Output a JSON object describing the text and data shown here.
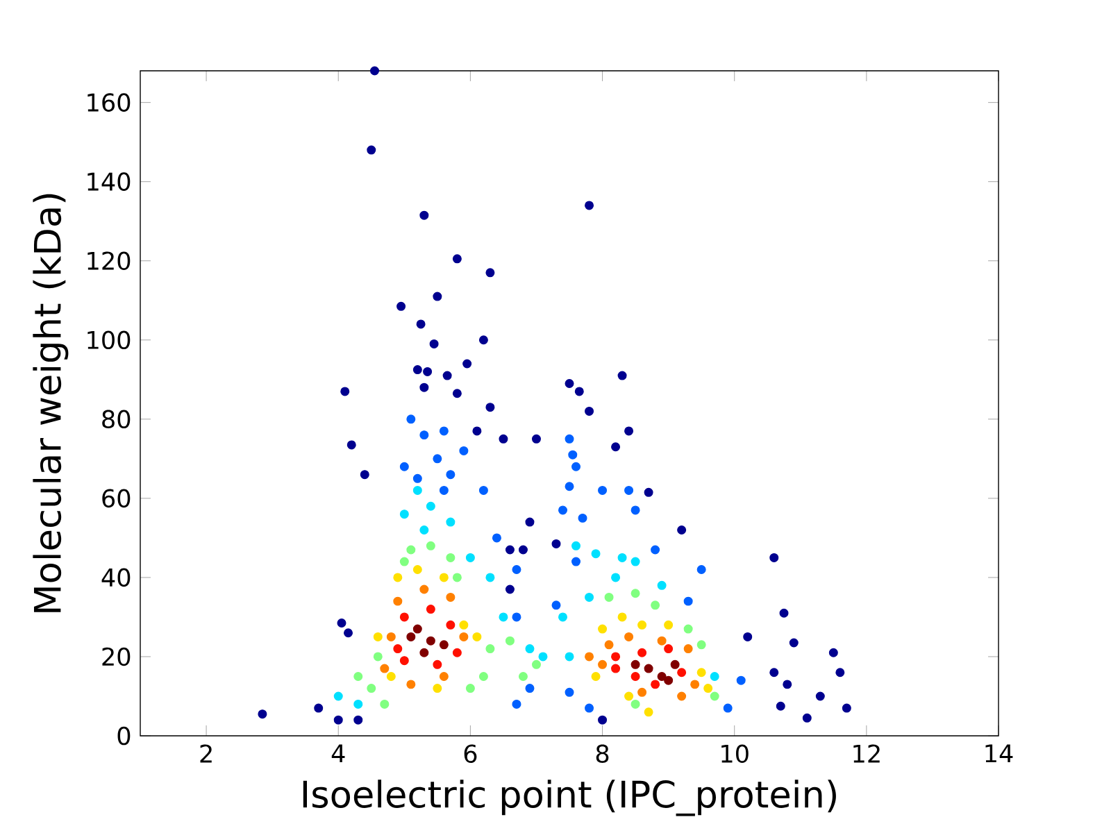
{
  "chart_data": {
    "type": "scatter",
    "xlabel": "Isoelectric point (IPC_protein)",
    "ylabel": "Molecular weight (kDa)",
    "xlim": [
      1,
      14
    ],
    "ylim": [
      0,
      168
    ],
    "xticks": [
      2,
      4,
      6,
      8,
      10,
      12,
      14
    ],
    "yticks": [
      0,
      20,
      40,
      60,
      80,
      100,
      120,
      140,
      160
    ],
    "marker": "circle",
    "grid": false,
    "x": [
      2.85,
      4.55,
      4.5,
      5.3,
      7.8,
      5.8,
      6.3,
      5.5,
      4.95,
      5.25,
      6.2,
      5.45,
      5.2,
      5.35,
      5.65,
      5.95,
      8.3,
      4.1,
      7.5,
      7.65,
      5.8,
      5.3,
      6.3,
      7.8,
      8.4,
      4.2,
      4.4,
      6.5,
      7.0,
      8.2,
      8.7,
      9.2,
      10.6,
      10.2,
      10.75,
      10.9,
      11.5,
      11.6,
      11.7,
      11.1,
      11.3,
      10.7,
      10.8,
      10.6,
      3.7,
      4.0,
      4.3,
      4.05,
      4.15,
      8.0,
      6.9,
      6.8,
      7.3,
      6.6,
      6.1,
      6.6,
      5.1,
      5.3,
      5.6,
      5.5,
      5.2,
      5.6,
      5.7,
      5.9,
      6.2,
      6.4,
      6.7,
      7.5,
      7.55,
      7.5,
      7.6,
      7.7,
      8.0,
      8.4,
      8.5,
      7.4,
      7.6,
      8.8,
      9.5,
      9.3,
      6.7,
      7.3,
      7.5,
      7.8,
      9.9,
      10.1,
      6.7,
      6.9,
      5.0,
      5.2,
      5.4,
      5.7,
      5.0,
      5.3,
      6.0,
      6.3,
      7.6,
      7.9,
      8.3,
      8.5,
      8.2,
      7.4,
      7.8,
      8.9,
      6.5,
      4.0,
      4.3,
      7.1,
      7.5,
      9.7,
      6.9,
      5.1,
      5.4,
      5.7,
      5.8,
      5.0,
      4.5,
      4.3,
      4.7,
      6.3,
      6.6,
      6.8,
      7.0,
      8.1,
      8.5,
      8.8,
      9.3,
      9.5,
      9.7,
      8.5,
      6.0,
      6.2,
      4.6,
      4.9,
      5.2,
      5.6,
      4.6,
      4.8,
      5.9,
      6.1,
      8.0,
      8.3,
      8.6,
      9.0,
      9.5,
      9.6,
      8.4,
      8.7,
      5.5,
      7.9,
      4.9,
      5.3,
      5.7,
      5.9,
      4.8,
      4.7,
      5.1,
      5.6,
      8.1,
      8.4,
      8.9,
      9.3,
      9.4,
      8.0,
      8.6,
      9.2,
      7.8,
      5.0,
      5.4,
      5.7,
      4.9,
      5.0,
      5.5,
      5.8,
      8.2,
      8.6,
      9.0,
      9.2,
      8.5,
      8.8,
      8.2,
      5.2,
      5.4,
      5.3,
      5.6,
      5.1,
      8.7,
      8.9,
      9.1,
      8.5,
      9.0
    ],
    "values": [
      5.5,
      168,
      148,
      131.5,
      134,
      120.5,
      117,
      111,
      108.5,
      104,
      100,
      99,
      92.5,
      92,
      91,
      94,
      91,
      87,
      89,
      87,
      86.5,
      88,
      83,
      82,
      77,
      73.5,
      66,
      75,
      75,
      73,
      61.5,
      52,
      45,
      25,
      31,
      23.5,
      21,
      16,
      7,
      4.5,
      10,
      7.5,
      13,
      16,
      7,
      4,
      4,
      28.5,
      26,
      4,
      54,
      47,
      48.5,
      47,
      77,
      37,
      80,
      76,
      77,
      70,
      65,
      62,
      66,
      72,
      62,
      50,
      42,
      75,
      71,
      63,
      68,
      55,
      62,
      62,
      57,
      57,
      44,
      47,
      42,
      34,
      30,
      33,
      11,
      7,
      7,
      14,
      8,
      12,
      68,
      62,
      58,
      54,
      56,
      52,
      45,
      40,
      48,
      46,
      45,
      44,
      40,
      30,
      35,
      38,
      30,
      10,
      8,
      20,
      20,
      15,
      22,
      47,
      48,
      45,
      40,
      44,
      12,
      15,
      8,
      22,
      24,
      15,
      18,
      35,
      36,
      33,
      27,
      23,
      10,
      8,
      12,
      15,
      20,
      40,
      42,
      40,
      25,
      15,
      28,
      25,
      27,
      30,
      28,
      28,
      16,
      12,
      10,
      6,
      12,
      15,
      34,
      37,
      35,
      25,
      25,
      17,
      13,
      15,
      23,
      25,
      24,
      22,
      13,
      18,
      11,
      10,
      20,
      30,
      32,
      28,
      22,
      19,
      18,
      21,
      20,
      21,
      22,
      16,
      15,
      13,
      17,
      27,
      24,
      21,
      23,
      25,
      17,
      15,
      18,
      18,
      14
    ],
    "colors": [
      "#00008f",
      "#00008f",
      "#00008f",
      "#00008f",
      "#00008f",
      "#00008f",
      "#00008f",
      "#00008f",
      "#00008f",
      "#00008f",
      "#00008f",
      "#00008f",
      "#00008f",
      "#00008f",
      "#00008f",
      "#00008f",
      "#00008f",
      "#00008f",
      "#00008f",
      "#00008f",
      "#00008f",
      "#00008f",
      "#00008f",
      "#00008f",
      "#00008f",
      "#00008f",
      "#00008f",
      "#00008f",
      "#00008f",
      "#00008f",
      "#00008f",
      "#00008f",
      "#00008f",
      "#00008f",
      "#00008f",
      "#00008f",
      "#00008f",
      "#00008f",
      "#00008f",
      "#00008f",
      "#00008f",
      "#00008f",
      "#00008f",
      "#00008f",
      "#00008f",
      "#00008f",
      "#00008f",
      "#00008f",
      "#00008f",
      "#00008f",
      "#00008f",
      "#00008f",
      "#00008f",
      "#00008f",
      "#00008f",
      "#00008f",
      "#0060ff",
      "#0060ff",
      "#0060ff",
      "#0060ff",
      "#0060ff",
      "#0060ff",
      "#0060ff",
      "#0060ff",
      "#0060ff",
      "#0060ff",
      "#0060ff",
      "#0060ff",
      "#0060ff",
      "#0060ff",
      "#0060ff",
      "#0060ff",
      "#0060ff",
      "#0060ff",
      "#0060ff",
      "#0060ff",
      "#0060ff",
      "#0060ff",
      "#0060ff",
      "#0060ff",
      "#0060ff",
      "#0060ff",
      "#0060ff",
      "#0060ff",
      "#0060ff",
      "#0060ff",
      "#0060ff",
      "#0060ff",
      "#0060ff",
      "#00e0ff",
      "#00e0ff",
      "#00e0ff",
      "#00e0ff",
      "#00e0ff",
      "#00e0ff",
      "#00e0ff",
      "#00e0ff",
      "#00e0ff",
      "#00e0ff",
      "#00e0ff",
      "#00e0ff",
      "#00e0ff",
      "#00e0ff",
      "#00e0ff",
      "#00e0ff",
      "#00e0ff",
      "#00e0ff",
      "#00e0ff",
      "#00e0ff",
      "#00e0ff",
      "#00e0ff",
      "#80ff80",
      "#80ff80",
      "#80ff80",
      "#80ff80",
      "#80ff80",
      "#80ff80",
      "#80ff80",
      "#80ff80",
      "#80ff80",
      "#80ff80",
      "#80ff80",
      "#80ff80",
      "#80ff80",
      "#80ff80",
      "#80ff80",
      "#80ff80",
      "#80ff80",
      "#80ff80",
      "#80ff80",
      "#80ff80",
      "#80ff80",
      "#80ff80",
      "#ffe000",
      "#ffe000",
      "#ffe000",
      "#ffe000",
      "#ffe000",
      "#ffe000",
      "#ffe000",
      "#ffe000",
      "#ffe000",
      "#ffe000",
      "#ffe000",
      "#ffe000",
      "#ffe000",
      "#ffe000",
      "#ffe000",
      "#ffe000",
      "#ffe000",
      "#ff8000",
      "#ff8000",
      "#ff8000",
      "#ff8000",
      "#ff8000",
      "#ff8000",
      "#ff8000",
      "#ff8000",
      "#ff8000",
      "#ff8000",
      "#ff8000",
      "#ff8000",
      "#ff8000",
      "#ff8000",
      "#ff8000",
      "#ff8000",
      "#ff8000",
      "#ff1000",
      "#ff1000",
      "#ff1000",
      "#ff1000",
      "#ff1000",
      "#ff1000",
      "#ff1000",
      "#ff1000",
      "#ff1000",
      "#ff1000",
      "#ff1000",
      "#ff1000",
      "#ff1000",
      "#ff1000",
      "#800000",
      "#800000",
      "#800000",
      "#800000",
      "#800000",
      "#800000",
      "#800000",
      "#800000",
      "#800000",
      "#800000"
    ]
  }
}
